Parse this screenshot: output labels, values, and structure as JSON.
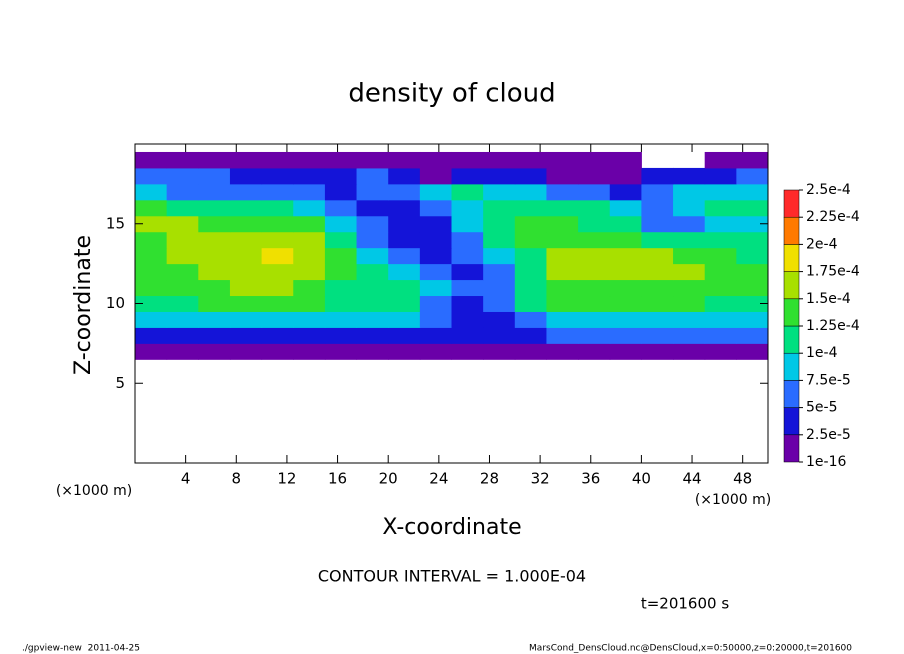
{
  "chart_data": {
    "type": "heatmap",
    "title": "density of cloud",
    "xlabel": "X-coordinate",
    "ylabel": "Z-coordinate",
    "x_unit": "(×1000 m)",
    "y_unit": "(×1000 m)",
    "xlim": [
      0,
      50
    ],
    "ylim": [
      0,
      20
    ],
    "xticks": [
      4,
      8,
      12,
      16,
      20,
      24,
      28,
      32,
      36,
      40,
      44,
      48
    ],
    "yticks": [
      5,
      10,
      15
    ],
    "x": [
      1.25,
      3.75,
      6.25,
      8.75,
      11.25,
      13.75,
      16.25,
      18.75,
      21.25,
      23.75,
      26.25,
      28.75,
      31.25,
      33.75,
      36.25,
      38.75,
      41.25,
      43.75,
      46.25,
      48.75
    ],
    "y": [
      7,
      8,
      9,
      10,
      11,
      12,
      13,
      14,
      15,
      16,
      17,
      18,
      19
    ],
    "values": [
      [
        1e-05,
        1e-05,
        1e-05,
        1e-05,
        1e-05,
        1e-05,
        1e-05,
        1e-05,
        1e-05,
        1e-05,
        2e-05,
        2e-05,
        1e-05,
        1e-05,
        1e-05,
        1e-05,
        1e-05,
        1e-05,
        1e-05,
        1e-05
      ],
      [
        4e-05,
        4e-05,
        4e-05,
        4e-05,
        4e-05,
        4e-05,
        4e-05,
        4e-05,
        4e-05,
        3e-05,
        3e-05,
        3e-05,
        4e-05,
        5e-05,
        5e-05,
        5e-05,
        5e-05,
        5e-05,
        5e-05,
        5e-05
      ],
      [
        9e-05,
        9e-05,
        9e-05,
        8e-05,
        8e-05,
        9e-05,
        9e-05,
        8e-05,
        8e-05,
        5e-05,
        4e-05,
        4e-05,
        7e-05,
        9e-05,
        9e-05,
        9e-05,
        9e-05,
        9e-05,
        9e-05,
        9e-05
      ],
      [
        0.00012,
        0.00012,
        0.00013,
        0.00013,
        0.00013,
        0.00013,
        0.00012,
        0.00011,
        0.0001,
        6e-05,
        4e-05,
        5e-05,
        0.00011,
        0.00013,
        0.00013,
        0.00013,
        0.00013,
        0.00013,
        0.00012,
        0.00012
      ],
      [
        0.00013,
        0.00013,
        0.00014,
        0.00015,
        0.00015,
        0.00014,
        0.00012,
        0.00011,
        0.00011,
        9e-05,
        5e-05,
        7e-05,
        0.00012,
        0.00014,
        0.00014,
        0.00014,
        0.00014,
        0.00014,
        0.00013,
        0.00013
      ],
      [
        0.00014,
        0.00014,
        0.00015,
        0.00016,
        0.00016,
        0.00015,
        0.00013,
        0.0001,
        8e-05,
        6e-05,
        4e-05,
        6e-05,
        0.00012,
        0.00015,
        0.00015,
        0.00015,
        0.00015,
        0.00015,
        0.00014,
        0.00013
      ],
      [
        0.00014,
        0.00015,
        0.00016,
        0.00017,
        0.00018,
        0.00015,
        0.00013,
        9e-05,
        6e-05,
        4e-05,
        5e-05,
        8e-05,
        0.00012,
        0.00015,
        0.00015,
        0.00015,
        0.00015,
        0.00014,
        0.00013,
        0.00012
      ],
      [
        0.00014,
        0.00015,
        0.00016,
        0.00016,
        0.00017,
        0.00015,
        0.00012,
        6e-05,
        4e-05,
        3e-05,
        6e-05,
        0.0001,
        0.00013,
        0.00014,
        0.00014,
        0.00013,
        0.00012,
        0.0001,
        0.00012,
        0.00011
      ],
      [
        0.00015,
        0.00015,
        0.00014,
        0.00014,
        0.00014,
        0.00013,
        9e-05,
        5e-05,
        3e-05,
        4e-05,
        8e-05,
        0.00011,
        0.00013,
        0.00013,
        0.00012,
        0.0001,
        7e-05,
        6e-05,
        9e-05,
        9e-05
      ],
      [
        0.00013,
        0.00012,
        0.00011,
        0.0001,
        0.0001,
        9e-05,
        6e-05,
        4e-05,
        3e-05,
        5e-05,
        8e-05,
        0.00011,
        0.00012,
        0.00012,
        0.00011,
        8e-05,
        5e-05,
        8e-05,
        0.0001,
        0.00011
      ],
      [
        8e-05,
        7e-05,
        7e-05,
        6e-05,
        6e-05,
        5e-05,
        4e-05,
        5e-05,
        7e-05,
        8e-05,
        0.0001,
        9e-05,
        8e-05,
        6e-05,
        5e-05,
        4e-05,
        6e-05,
        8e-05,
        9e-05,
        9e-05
      ],
      [
        5e-05,
        5e-05,
        5e-05,
        4e-05,
        3e-05,
        3e-05,
        4e-05,
        6e-05,
        4e-05,
        2e-05,
        3e-05,
        4e-05,
        3e-05,
        2e-05,
        2e-05,
        2e-05,
        4e-05,
        4e-05,
        4e-05,
        5e-05
      ],
      [
        1e-05,
        1e-05,
        1e-05,
        1e-05,
        1e-05,
        1e-05,
        1e-05,
        2e-05,
        2e-05,
        1e-05,
        1e-05,
        1e-05,
        1e-05,
        1e-05,
        1e-05,
        1e-05,
        null,
        null,
        1e-05,
        1e-05
      ]
    ],
    "colorbar": {
      "levels": [
        {
          "value": 1e-16,
          "label": "1e-16"
        },
        {
          "value": 2.5e-05,
          "label": "2.5e-5"
        },
        {
          "value": 5e-05,
          "label": "5e-5"
        },
        {
          "value": 7.5e-05,
          "label": "7.5e-5"
        },
        {
          "value": 0.0001,
          "label": "1e-4"
        },
        {
          "value": 0.000125,
          "label": "1.25e-4"
        },
        {
          "value": 0.00015,
          "label": "1.5e-4"
        },
        {
          "value": 0.000175,
          "label": "1.75e-4"
        },
        {
          "value": 0.0002,
          "label": "2e-4"
        },
        {
          "value": 0.000225,
          "label": "2.25e-4"
        },
        {
          "value": 0.00025,
          "label": "2.5e-4"
        }
      ],
      "colors": [
        "#6a00a8",
        "#1414d8",
        "#2a6cff",
        "#00c8e6",
        "#00e080",
        "#30e030",
        "#a8e000",
        "#f0e000",
        "#ff7a00",
        "#ff2a2a"
      ]
    },
    "annotations": [
      "CONTOUR INTERVAL = 1.000E-04",
      "t=201600 s"
    ],
    "footer": [
      "./gpview-new  2011-04-25",
      "MarsCond_DensCloud.nc@DensCloud,x=0:50000,z=0:20000,t=201600"
    ]
  }
}
